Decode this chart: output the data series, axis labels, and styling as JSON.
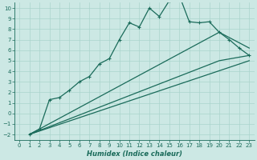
{
  "xlabel": "Humidex (Indice chaleur)",
  "bg_color": "#cce8e4",
  "line_color": "#1a6b5a",
  "grid_color": "#aad4cc",
  "xlim": [
    -0.5,
    23.5
  ],
  "ylim": [
    -2.5,
    10.5
  ],
  "xticks": [
    0,
    1,
    2,
    3,
    4,
    5,
    6,
    7,
    8,
    9,
    10,
    11,
    12,
    13,
    14,
    15,
    16,
    17,
    18,
    19,
    20,
    21,
    22,
    23
  ],
  "yticks": [
    -2,
    -1,
    0,
    1,
    2,
    3,
    4,
    5,
    6,
    7,
    8,
    9,
    10
  ],
  "line1_x": [
    1,
    2,
    3,
    4,
    5,
    6,
    7,
    8,
    9,
    10,
    11,
    12,
    13,
    14,
    15,
    16,
    17,
    18,
    19,
    20,
    21,
    22,
    23
  ],
  "line1_y": [
    -2,
    -1.5,
    1.3,
    1.5,
    2.2,
    3.0,
    3.5,
    4.7,
    5.2,
    7.0,
    8.6,
    8.2,
    10.0,
    9.2,
    10.7,
    11.2,
    8.7,
    8.6,
    8.7,
    7.7,
    7.0,
    6.2,
    5.5
  ],
  "line2_x": [
    1,
    20,
    23
  ],
  "line2_y": [
    -2,
    7.7,
    6.2
  ],
  "line3_x": [
    1,
    20,
    23
  ],
  "line3_y": [
    -2,
    5.0,
    5.5
  ],
  "line4_x": [
    1,
    23
  ],
  "line4_y": [
    -2,
    5.0
  ],
  "linewidth": 0.9,
  "marker_size": 3.5,
  "tick_fontsize": 5.0,
  "xlabel_fontsize": 6.0
}
